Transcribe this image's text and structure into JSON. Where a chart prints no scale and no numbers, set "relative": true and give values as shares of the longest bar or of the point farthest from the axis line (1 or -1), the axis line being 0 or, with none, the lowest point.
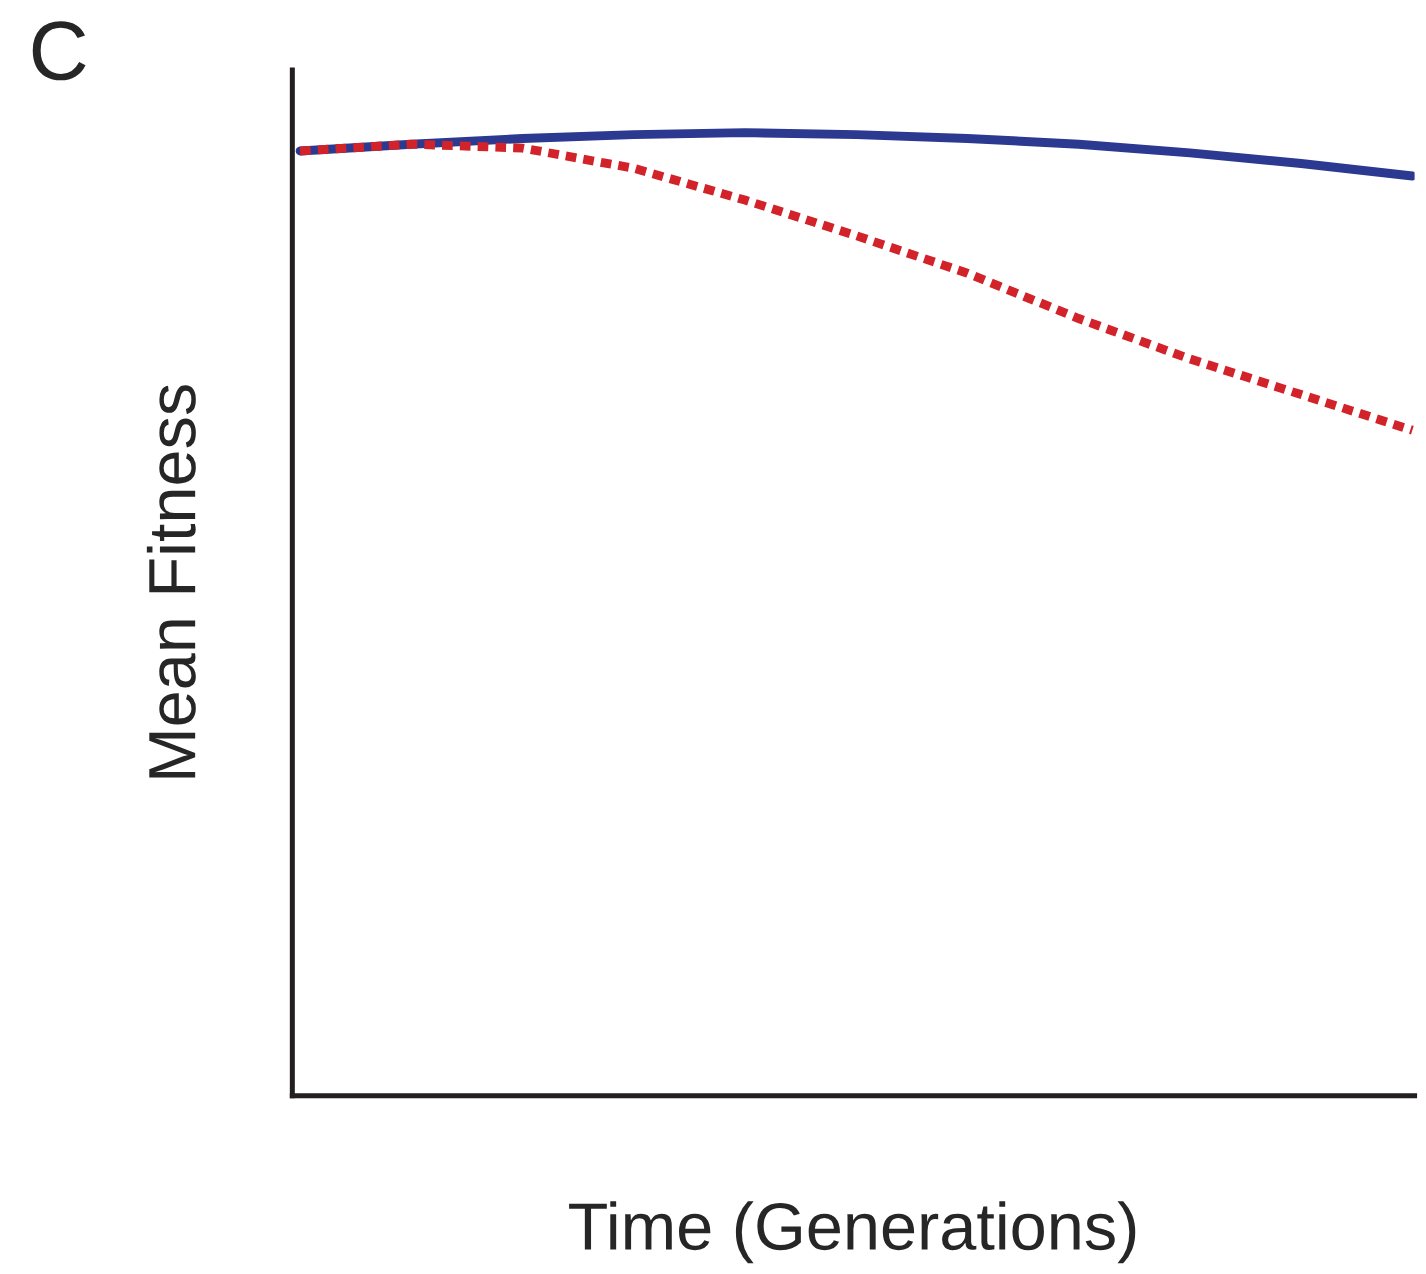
{
  "chart_data": {
    "type": "line",
    "title": "C",
    "xlabel": "Time (Generations)",
    "ylabel": "Mean Fitness",
    "relative": true,
    "legend": false,
    "categories": [
      null,
      null,
      null,
      null,
      null,
      null,
      null,
      null,
      null,
      null,
      null
    ],
    "series": [
      {
        "color": "#2b3990",
        "line_style": "solid",
        "values": [
          0.981,
          0.988,
          0.994,
          0.998,
          1,
          0.998,
          0.994,
          0.988,
          0.979,
          0.968,
          0.955
        ]
      },
      {
        "color": "#d2232a",
        "line_style": "dotted",
        "values": [
          0.981,
          0.988,
          0.984,
          0.963,
          0.93,
          0.893,
          0.854,
          0.807,
          0.765,
          0.728,
          0.691
        ]
      }
    ]
  }
}
